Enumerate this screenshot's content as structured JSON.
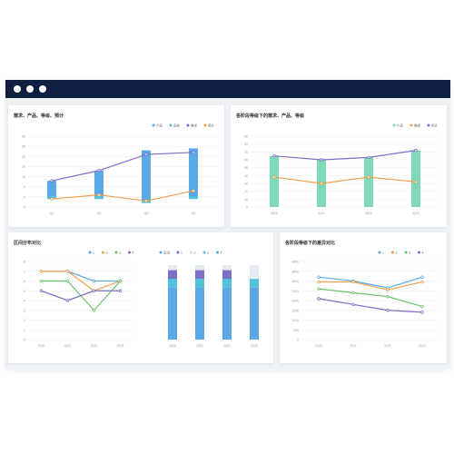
{
  "window": {
    "titlebar_color": "#0f1f3f"
  },
  "panels": {
    "p1": {
      "title": "需求、产品、等级、预计"
    },
    "p2": {
      "title": "各阶段等级下的需求、产品、等级"
    },
    "p3": {
      "title": "区间分布对比"
    },
    "p4": {
      "title": "各阶段等级下的差异对比"
    }
  },
  "chart_data": [
    {
      "type": "bar",
      "title": "需求、产品、等级、预计",
      "categories": [
        "Q1",
        "Q2",
        "Q3",
        "Q4"
      ],
      "legend": [
        "产品",
        "品控",
        "需求",
        "预计"
      ],
      "bar_range": [
        [
          -1,
          8
        ],
        [
          -1,
          13
        ],
        [
          -3,
          23
        ],
        [
          -1,
          24
        ]
      ],
      "series": [
        {
          "name": "需求",
          "values": [
            8,
            13,
            21,
            22
          ],
          "color": "#7b6fc6"
        },
        {
          "name": "预计",
          "values": [
            -1,
            1,
            -2,
            3
          ],
          "color": "#f0a04b"
        }
      ],
      "ylim": [
        -5,
        30
      ],
      "bar_color": "#5aa9e6",
      "bar_tip_color": "#4fc3d9"
    },
    {
      "type": "bar",
      "title": "各阶段等级下的需求、产品、等级",
      "categories": [
        "2020",
        "2021",
        "2022",
        "2023"
      ],
      "legend": [
        "产品",
        "需求",
        "预计"
      ],
      "bar_values": [
        65,
        60,
        63,
        72
      ],
      "series": [
        {
          "name": "需求",
          "values": [
            65,
            60,
            63,
            72
          ],
          "color": "#7b6fc6"
        },
        {
          "name": "预计",
          "values": [
            38,
            30,
            38,
            32
          ],
          "color": "#f0a04b"
        }
      ],
      "ylim": [
        0,
        90
      ],
      "bar_color": "#7fd8b8"
    },
    {
      "type": "line",
      "title": "区间分布对比",
      "categories": [
        "2020",
        "2021",
        "2022",
        "2023"
      ],
      "legend": [
        "1",
        "2",
        "3",
        "4"
      ],
      "series": [
        {
          "values": [
            7,
            7,
            6,
            6
          ],
          "color": "#5aa9e6"
        },
        {
          "values": [
            7,
            7,
            5,
            6
          ],
          "color": "#f0a04b"
        },
        {
          "values": [
            6,
            6,
            3,
            6
          ],
          "color": "#67c56b"
        },
        {
          "values": [
            5,
            4,
            5,
            5
          ],
          "color": "#7b6fc6"
        }
      ],
      "ylim": [
        0,
        8
      ]
    },
    {
      "type": "bar",
      "title": "",
      "categories": [
        "2020",
        "2021",
        "2022",
        "2023"
      ],
      "legend": [
        "区间",
        "1",
        "2",
        "3",
        "4"
      ],
      "stacks": [
        [
          60,
          10,
          10
        ],
        [
          60,
          10,
          10
        ],
        [
          60,
          10,
          10
        ],
        [
          60,
          10,
          0
        ]
      ],
      "stack_colors": [
        "#5aa9e6",
        "#4fc3d9",
        "#7b6fc6"
      ],
      "ylim": [
        0,
        90
      ]
    },
    {
      "type": "line",
      "title": "各阶段等级下的差异对比",
      "categories": [
        "2020",
        "2021",
        "2022",
        "2023"
      ],
      "legend": [
        "1",
        "2",
        "3",
        "4"
      ],
      "series": [
        {
          "values": [
            3200,
            3000,
            2650,
            3200
          ],
          "color": "#5aa9e6"
        },
        {
          "values": [
            2950,
            2950,
            2550,
            2950
          ],
          "color": "#f0a04b"
        },
        {
          "values": [
            2600,
            2400,
            2200,
            1700
          ],
          "color": "#67c56b"
        },
        {
          "values": [
            2100,
            1800,
            1500,
            1400
          ],
          "color": "#7b6fc6"
        }
      ],
      "ylim": [
        0,
        4000
      ]
    }
  ]
}
